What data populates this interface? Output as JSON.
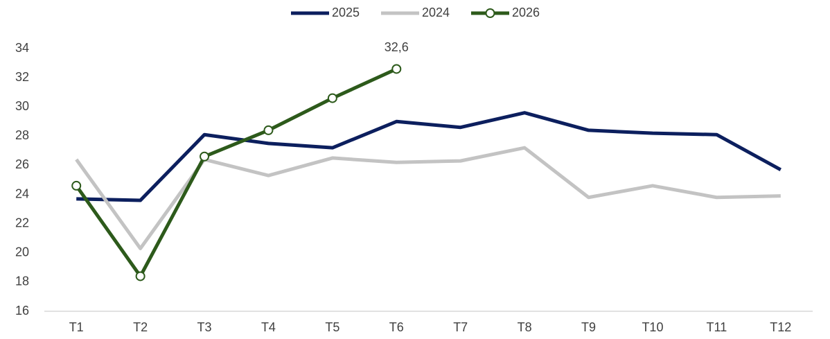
{
  "chart_data": {
    "type": "line",
    "categories": [
      "T1",
      "T2",
      "T3",
      "T4",
      "T5",
      "T6",
      "T7",
      "T8",
      "T9",
      "T10",
      "T11",
      "T12"
    ],
    "series": [
      {
        "name": "2025",
        "color": "#0c1f5e",
        "values": [
          23.7,
          23.6,
          28.1,
          27.5,
          27.2,
          29.0,
          28.6,
          29.6,
          28.4,
          28.2,
          28.1,
          25.7
        ]
      },
      {
        "name": "2024",
        "color": "#c3c3c3",
        "values": [
          26.4,
          20.3,
          26.4,
          25.3,
          26.5,
          26.2,
          26.3,
          27.2,
          23.8,
          24.6,
          23.8,
          23.9
        ]
      },
      {
        "name": "2026",
        "color": "#2d5a1b",
        "marker": true,
        "values": [
          24.6,
          18.4,
          26.6,
          28.4,
          30.6,
          32.6,
          null,
          null,
          null,
          null,
          null,
          null
        ],
        "value_labels": [
          null,
          null,
          null,
          null,
          null,
          "32,6",
          null,
          null,
          null,
          null,
          null,
          null
        ]
      }
    ],
    "ylim": [
      16,
      34
    ],
    "yticks": [
      16,
      18,
      20,
      22,
      24,
      26,
      28,
      30,
      32,
      34
    ],
    "legend": "top"
  }
}
